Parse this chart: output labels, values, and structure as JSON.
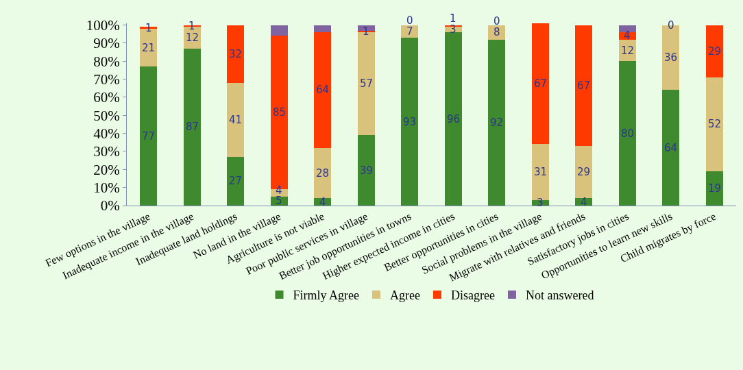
{
  "chart_data": {
    "type": "bar",
    "stacked": true,
    "categories": [
      "Few options in the village",
      "Inadequate income in the village",
      "Inadequate land holdings",
      "No land in the village",
      "Agriculture is not viable",
      "Poor public services in village",
      "Better job opportunities in towns",
      "Higher expected income in cities",
      "Better opportunities in cities",
      "Social problems in the village",
      "Migrate with relatives and friends",
      "Satisfactory jobs in cities",
      "Opportunities to learn new skills",
      "Child migrates by force"
    ],
    "series": [
      {
        "name": "Firmly Agree",
        "color": "#3f8a2e",
        "values": [
          77,
          87,
          27,
          5,
          4,
          39,
          93,
          96,
          92,
          3,
          4,
          80,
          64,
          19
        ],
        "value_labels": [
          "77",
          "87",
          "27",
          "5",
          "4",
          "39",
          "93",
          "96",
          "92",
          "3",
          "4",
          "80",
          "64",
          "19"
        ]
      },
      {
        "name": "Agree",
        "color": "#d9c27c",
        "values": [
          21,
          12,
          41,
          4,
          28,
          57,
          7,
          3,
          8,
          31,
          29,
          12,
          36,
          52
        ],
        "value_labels": [
          "21",
          "12",
          "41",
          "4",
          "28",
          "57",
          "7",
          "3",
          "8",
          "31",
          "29",
          "12",
          "36",
          "52"
        ]
      },
      {
        "name": "Disagree",
        "color": "#ff3a00",
        "values": [
          1,
          1,
          32,
          85,
          64,
          1,
          0,
          1,
          0,
          67,
          67,
          4,
          0,
          29
        ],
        "value_labels": [
          "1",
          "1",
          "32",
          "85",
          "64",
          "1",
          "0",
          "1",
          "0",
          "67",
          "67",
          "4",
          "0",
          "29"
        ]
      },
      {
        "name": "Not answered",
        "color": "#8064a2",
        "values": [
          0,
          0,
          0,
          6,
          4,
          3,
          0,
          0,
          0,
          0,
          0,
          4,
          0,
          0
        ]
      }
    ],
    "ylim": [
      0,
      101
    ],
    "yticks": [
      {
        "value": 0,
        "label": "0%"
      },
      {
        "value": 10,
        "label": "10%"
      },
      {
        "value": 20,
        "label": "20%"
      },
      {
        "value": 30,
        "label": "30%"
      },
      {
        "value": 40,
        "label": "40%"
      },
      {
        "value": 50,
        "label": "50%"
      },
      {
        "value": 60,
        "label": "60%"
      },
      {
        "value": 70,
        "label": "70%"
      },
      {
        "value": 80,
        "label": "80%"
      },
      {
        "value": 90,
        "label": "90%"
      },
      {
        "value": 100,
        "label": "100%"
      }
    ],
    "grid": false,
    "legend": "bottom"
  }
}
